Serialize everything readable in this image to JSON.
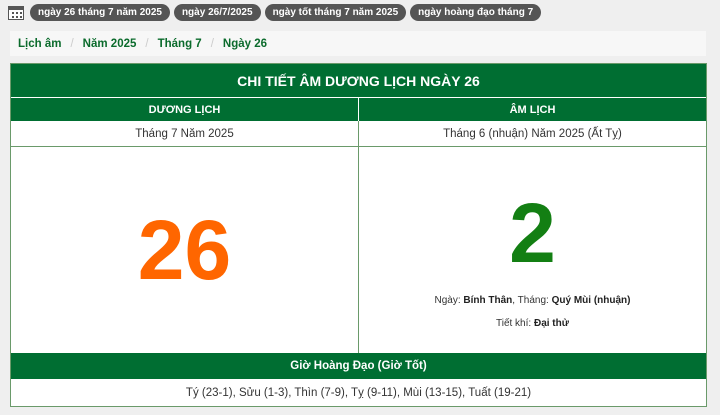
{
  "tags": [
    "ngày 26 tháng 7 năm 2025",
    "ngày 26/7/2025",
    "ngày tốt tháng 7 năm 2025",
    "ngày hoàng đạo tháng 7"
  ],
  "breadcrumb": [
    "Lịch âm",
    "Năm 2025",
    "Tháng 7",
    "Ngày 26"
  ],
  "breadcrumb_sep": "/",
  "title": "CHI TIẾT ÂM DƯƠNG LỊCH NGÀY 26",
  "solar": {
    "header": "DƯƠNG LỊCH",
    "month_year": "Tháng 7 Năm 2025",
    "day": "26"
  },
  "lunar": {
    "header": "ÂM LỊCH",
    "month_year": "Tháng 6 (nhuận) Năm 2025 (Ất Tỵ)",
    "day": "2",
    "day_label": "Ngày: ",
    "day_value": "Bính Thân",
    "month_label": ", Tháng: ",
    "month_value": "Quý Mùi (nhuận)",
    "tietkhi_label": "Tiết khí: ",
    "tietkhi_value": "Đại thử"
  },
  "hoang_dao": {
    "title": "Giờ Hoàng Đạo (Giờ Tốt)",
    "hours": "Tý (23-1), Sửu (1-3), Thìn (7-9), Tỵ (9-11), Mùi (13-15), Tuất (19-21)"
  },
  "colors": {
    "green": "#006e32",
    "solar_day": "#ff6600",
    "lunar_day": "#137f13"
  }
}
